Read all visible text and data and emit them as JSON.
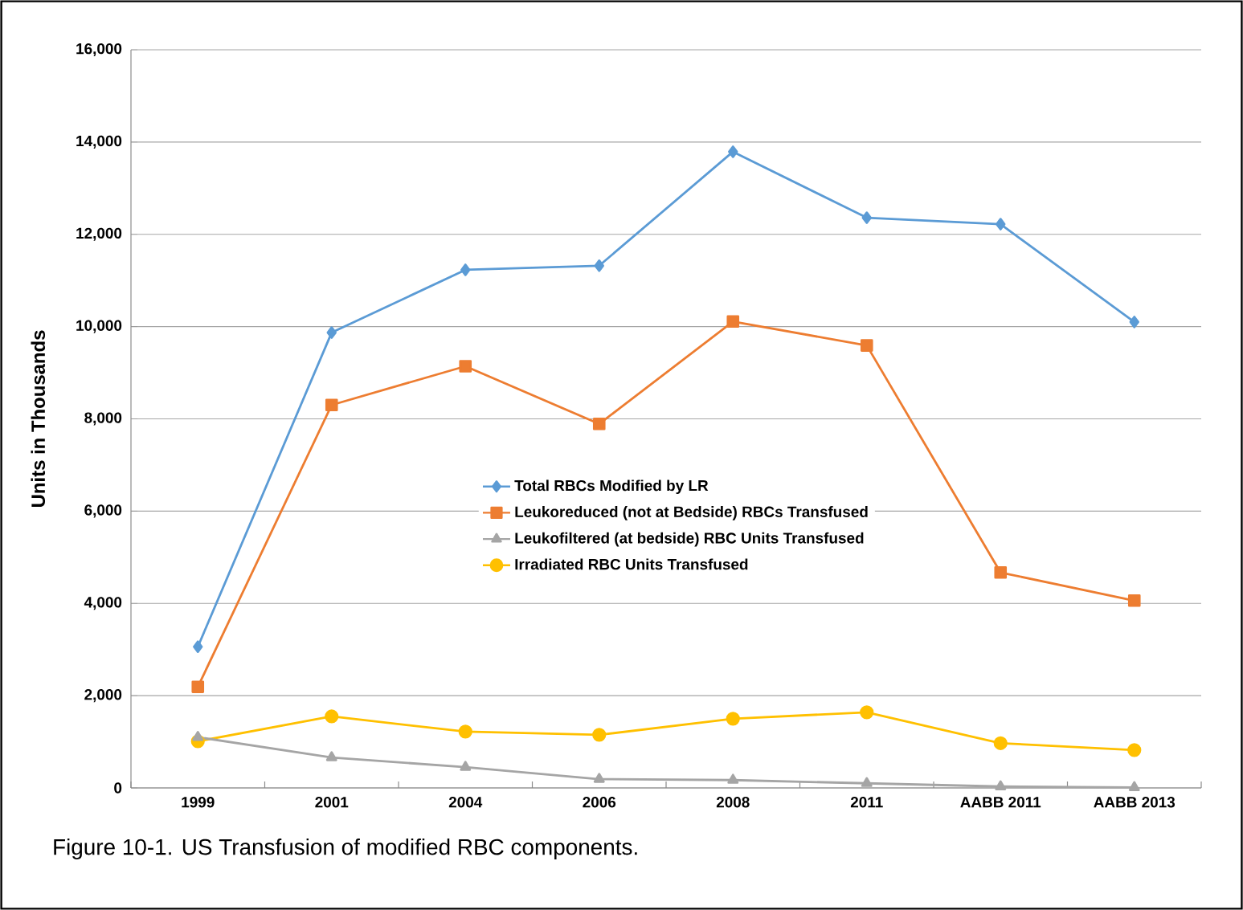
{
  "chart_data": {
    "type": "line",
    "ylabel": "Units in Thousands",
    "annotations": [
      "Figure 10-1. US Transfusion of modified RBC components."
    ],
    "categories": [
      "1999",
      "2001",
      "2004",
      "2006",
      "2008",
      "2011",
      "AABB 2011",
      "AABB 2013"
    ],
    "series": [
      {
        "name": "Total RBCs Modified by LR",
        "color": "#5b9bd5",
        "marker": "diamond",
        "values": [
          3060,
          9870,
          11230,
          11320,
          13790,
          12360,
          12220,
          10100
        ]
      },
      {
        "name": "Leukoreduced (not at Bedside) RBCs Transfused",
        "color": "#ed7d31",
        "marker": "square",
        "values": [
          2190,
          8300,
          9140,
          7890,
          10110,
          9590,
          4670,
          4060
        ]
      },
      {
        "name": "Leukofiltered (at bedside) RBC Units Transfused",
        "color": "#a5a5a5",
        "marker": "triangle",
        "values": [
          1100,
          660,
          450,
          190,
          170,
          100,
          30,
          10
        ]
      },
      {
        "name": "Irradiated RBC Units Transfused",
        "color": "#ffc000",
        "marker": "circle",
        "values": [
          1010,
          1550,
          1220,
          1150,
          1500,
          1640,
          970,
          820
        ]
      }
    ],
    "ylim": [
      0,
      16000
    ],
    "yticks": [
      0,
      {
        "value": 2000,
        "label": "2,000"
      },
      {
        "value": 4000,
        "label": "4,000"
      },
      {
        "value": 6000,
        "label": "6,000"
      },
      {
        "value": 8000,
        "label": "8,000"
      },
      {
        "value": 10000,
        "label": "10,000"
      },
      {
        "value": 12000,
        "label": "12,000"
      },
      {
        "value": 14000,
        "label": "14,000"
      },
      {
        "value": 16000,
        "label": "16,000"
      }
    ],
    "grid": "y",
    "legend": "center",
    "line_style": "solid"
  }
}
